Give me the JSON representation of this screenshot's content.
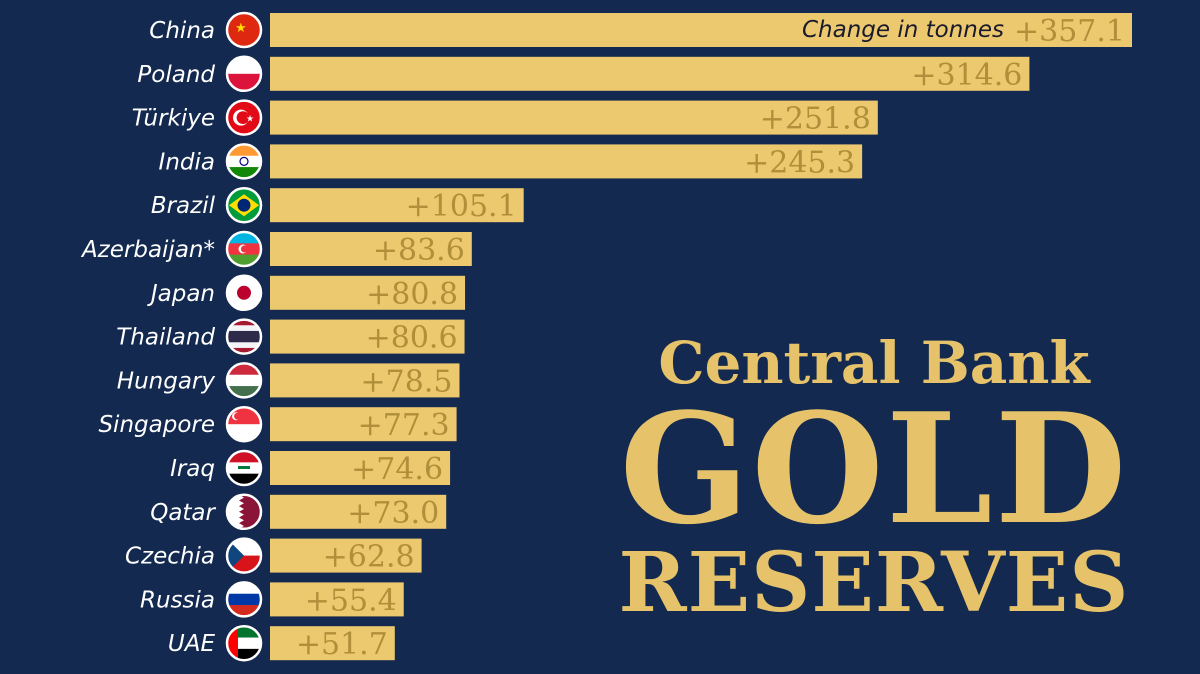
{
  "title": {
    "line1": "Central Bank",
    "line2": "GOLD",
    "line3": "RESERVES"
  },
  "chart_data": {
    "type": "bar",
    "orientation": "horizontal",
    "unit_note": "Change in tonnes",
    "categories": [
      "China",
      "Poland",
      "Türkiye",
      "India",
      "Brazil",
      "Azerbaijan*",
      "Japan",
      "Thailand",
      "Hungary",
      "Singapore",
      "Iraq",
      "Qatar",
      "Czechia",
      "Russia",
      "UAE"
    ],
    "values": [
      357.1,
      314.6,
      251.8,
      245.3,
      105.1,
      83.6,
      80.8,
      80.6,
      78.5,
      77.3,
      74.6,
      73.0,
      62.8,
      55.4,
      51.7
    ],
    "value_labels": [
      "+357.1",
      "+314.6",
      "+251.8",
      "+245.3",
      "+105.1",
      "+83.6",
      "+80.8",
      "+80.6",
      "+78.5",
      "+77.3",
      "+74.6",
      "+73.0",
      "+62.8",
      "+55.4",
      "+51.7"
    ],
    "flag_icons": [
      "china-flag-icon",
      "poland-flag-icon",
      "turkiye-flag-icon",
      "india-flag-icon",
      "brazil-flag-icon",
      "azerbaijan-flag-icon",
      "japan-flag-icon",
      "thailand-flag-icon",
      "hungary-flag-icon",
      "singapore-flag-icon",
      "iraq-flag-icon",
      "qatar-flag-icon",
      "czechia-flag-icon",
      "russia-flag-icon",
      "uae-flag-icon"
    ],
    "bar_color": "#ecc96e",
    "value_color": "#b08f3a",
    "background": "#13294f",
    "title_color": "#e6c36a"
  }
}
